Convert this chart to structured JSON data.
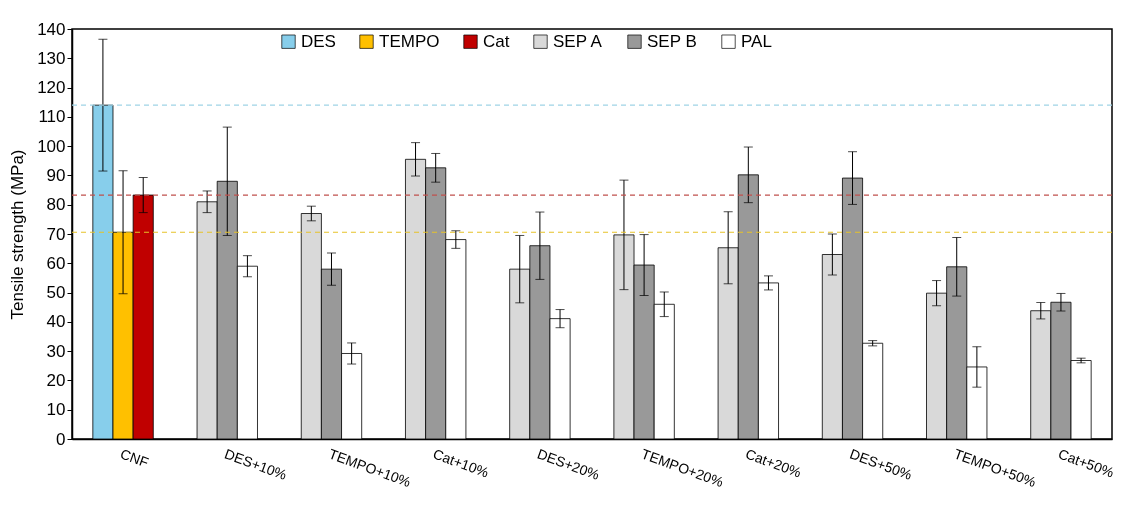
{
  "chart_data": {
    "type": "bar",
    "ylabel": "Tensile strength (MPa)",
    "categories": [
      "CNF",
      "DES+10%",
      "TEMPO+10%",
      "Cat+10%",
      "DES+20%",
      "TEMPO+20%",
      "Cat+20%",
      "DES+50%",
      "TEMPO+50%",
      "Cat+50%"
    ],
    "series": [
      {
        "name": "DES",
        "color": "#87ceeb",
        "values": [
          114,
          null,
          null,
          null,
          null,
          null,
          null,
          null,
          null,
          null
        ],
        "errors": [
          22.5,
          null,
          null,
          null,
          null,
          null,
          null,
          null,
          null,
          null
        ]
      },
      {
        "name": "TEMPO",
        "color": "#ffc000",
        "values": [
          70.6,
          null,
          null,
          null,
          null,
          null,
          null,
          null,
          null,
          null
        ],
        "errors": [
          21,
          null,
          null,
          null,
          null,
          null,
          null,
          null,
          null,
          null
        ]
      },
      {
        "name": "Cat",
        "color": "#c00000",
        "values": [
          83.3,
          null,
          null,
          null,
          null,
          null,
          null,
          null,
          null,
          null
        ],
        "errors": [
          6,
          null,
          null,
          null,
          null,
          null,
          null,
          null,
          null,
          null
        ]
      },
      {
        "name": "SEP A",
        "color": "#d9d9d9",
        "values": [
          null,
          81,
          77,
          95.5,
          58,
          69.7,
          65.3,
          63,
          49.8,
          43.8
        ],
        "errors": [
          null,
          3.7,
          2.5,
          5.7,
          11.5,
          18.7,
          12.3,
          7,
          4.3,
          2.8
        ]
      },
      {
        "name": "SEP B",
        "color": "#999999",
        "values": [
          null,
          88,
          58,
          92.6,
          66,
          59.4,
          90.2,
          89.1,
          58.8,
          46.7
        ],
        "errors": [
          null,
          18.5,
          5.5,
          4.9,
          11.5,
          10.4,
          9.5,
          9,
          10,
          3
        ]
      },
      {
        "name": "PAL",
        "color": "#ffffff",
        "values": [
          null,
          59,
          29.2,
          68.1,
          41.1,
          46,
          53.3,
          32.7,
          24.6,
          26.8
        ],
        "errors": [
          null,
          3.6,
          3.6,
          3,
          3.1,
          4.2,
          2.4,
          0.9,
          6.9,
          0.8
        ]
      }
    ],
    "ylim": [
      0,
      140
    ],
    "yticks": [
      0,
      10,
      20,
      30,
      40,
      50,
      60,
      70,
      80,
      90,
      100,
      110,
      120,
      130,
      140
    ],
    "ref_lines": [
      {
        "axis": "y",
        "value": 114,
        "color": "#9fd3e6",
        "line_style": "dashed"
      },
      {
        "axis": "y",
        "value": 83.3,
        "color": "#c0504d",
        "line_style": "dashed"
      },
      {
        "axis": "y",
        "value": 70.6,
        "color": "#e6c229",
        "line_style": "dashed"
      }
    ],
    "grid": false,
    "legend": "top"
  }
}
